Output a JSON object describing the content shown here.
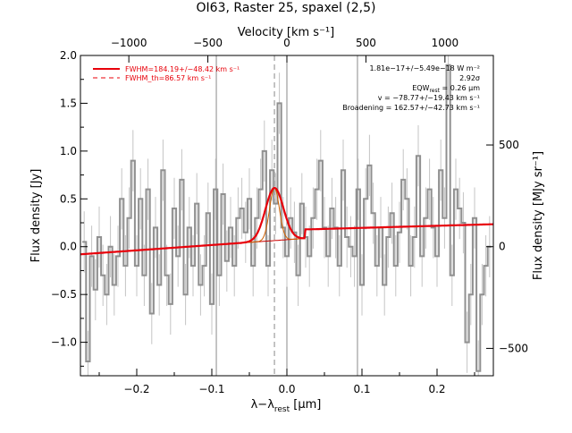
{
  "chart_data": {
    "type": "line",
    "title": "OI63, Raster 25, spaxel (2,5)",
    "xlabel_main": "λ−λ",
    "xlabel_sub": "rest",
    "xlabel_unit": " [μm]",
    "ylabel_left": "Flux density [Jy]",
    "ylabel_right": "Flux density [MJy sr⁻¹]",
    "top_axis_label": "Velocity [km s⁻¹]",
    "xlim": [
      -0.275,
      0.275
    ],
    "ylim": [
      -1.35,
      2.0
    ],
    "x_ticks": [
      -0.2,
      -0.1,
      0.0,
      0.1,
      0.2
    ],
    "x_tick_labels": [
      "−0.2",
      "−0.1",
      "0.0",
      "0.1",
      "0.2"
    ],
    "y_ticks": [
      -1.0,
      -0.5,
      0.0,
      0.5,
      1.0,
      1.5,
      2.0
    ],
    "y_tick_labels": [
      "−1.0",
      "−0.5",
      "0.0",
      "0.5",
      "1.0",
      "1.5",
      "2.0"
    ],
    "top_ticks_velocity": [
      -1000,
      -500,
      0,
      500,
      1000
    ],
    "top_tick_labels": [
      "−1000",
      "−500",
      "0",
      "500",
      "1000"
    ],
    "right_ticks_mjy": [
      -500,
      0,
      500
    ],
    "right_tick_labels": [
      "−500",
      "0",
      "500"
    ],
    "velocity_per_micron": 4750,
    "mjy_per_jy": 470,
    "vertical_lines": [
      -0.094,
      0.094
    ],
    "rest_line_x": 0.0,
    "fit_center_line_x": -0.0166,
    "legend": {
      "placement": "top-left",
      "fwhm": "FWHM=184.19+/−48.42 km s⁻¹",
      "fwhm_th": "FWHM_th=86.57 km s⁻¹"
    },
    "annotations": {
      "flux": "1.81e−17+/−5.49e−18 W m⁻²",
      "sigma": "2.92σ",
      "eqw": "EQW",
      "eqw_sub": "rest",
      "eqw_value": " = 0.26 μm",
      "velocity": "v = −78.77+/−19.43 km s⁻¹",
      "broadening": "Broadening = 162.57+/−42.73 km s⁻¹"
    },
    "series": [
      {
        "style": "step",
        "color": "#909090",
        "x": [
          -0.27,
          -0.265,
          -0.26,
          -0.255,
          -0.25,
          -0.245,
          -0.24,
          -0.235,
          -0.23,
          -0.225,
          -0.22,
          -0.215,
          -0.21,
          -0.205,
          -0.2,
          -0.195,
          -0.19,
          -0.185,
          -0.18,
          -0.175,
          -0.17,
          -0.165,
          -0.16,
          -0.155,
          -0.15,
          -0.145,
          -0.14,
          -0.135,
          -0.13,
          -0.125,
          -0.12,
          -0.115,
          -0.11,
          -0.105,
          -0.1,
          -0.095,
          -0.09,
          -0.085,
          -0.08,
          -0.075,
          -0.07,
          -0.065,
          -0.06,
          -0.055,
          -0.05,
          -0.045,
          -0.04,
          -0.035,
          -0.03,
          -0.025,
          -0.02,
          -0.015,
          -0.01,
          -0.005,
          0.0,
          0.005,
          0.01,
          0.015,
          0.02,
          0.025,
          0.03,
          0.035,
          0.04,
          0.045,
          0.05,
          0.055,
          0.06,
          0.065,
          0.07,
          0.075,
          0.08,
          0.085,
          0.09,
          0.095,
          0.1,
          0.105,
          0.11,
          0.115,
          0.12,
          0.125,
          0.13,
          0.135,
          0.14,
          0.145,
          0.15,
          0.155,
          0.16,
          0.165,
          0.17,
          0.175,
          0.18,
          0.185,
          0.19,
          0.195,
          0.2,
          0.205,
          0.21,
          0.215,
          0.22,
          0.225,
          0.23,
          0.235,
          0.24,
          0.245,
          0.25,
          0.255,
          0.26,
          0.265,
          0.27
        ],
        "y": [
          0.05,
          -1.2,
          -0.1,
          -0.45,
          0.1,
          -0.3,
          -0.5,
          0.0,
          -0.4,
          -0.1,
          0.5,
          -0.2,
          0.3,
          0.9,
          -0.2,
          0.5,
          -0.3,
          0.6,
          -0.7,
          0.2,
          -0.4,
          0.8,
          -0.3,
          -0.6,
          0.4,
          -0.1,
          0.7,
          -0.5,
          0.2,
          -0.2,
          0.45,
          -0.4,
          -0.2,
          0.35,
          -0.6,
          0.6,
          -0.3,
          0.55,
          -0.15,
          0.2,
          -0.2,
          0.3,
          0.4,
          0.15,
          0.5,
          -0.2,
          0.3,
          0.6,
          1.0,
          -0.2,
          0.8,
          0.45,
          1.5,
          0.2,
          -0.1,
          0.3,
          0.15,
          -0.3,
          0.45,
          0.1,
          -0.1,
          0.3,
          0.6,
          0.9,
          0.2,
          -0.1,
          0.4,
          0.2,
          -0.2,
          0.8,
          0.1,
          0.0,
          -0.1,
          0.6,
          -0.4,
          0.5,
          0.85,
          0.35,
          -0.2,
          0.2,
          -0.4,
          0.1,
          0.35,
          -0.2,
          0.15,
          0.7,
          0.5,
          -0.2,
          0.1,
          0.95,
          -0.1,
          0.3,
          0.6,
          0.2,
          -0.1,
          0.8,
          0.3,
          1.9,
          -0.3,
          0.6,
          0.4,
          0.25,
          -1.0,
          -0.5,
          0.3,
          -1.3,
          -0.5,
          -0.2,
          0.0
        ]
      },
      {
        "style": "smooth",
        "color": "#e8000a",
        "label": "FWHM=184.19+/−48.42 km s⁻¹",
        "baseline_left": -0.08,
        "baseline_right": 0.235,
        "baseline_step_x": 0.024,
        "baseline_step_level": 0.18,
        "gauss_amp": 0.55,
        "gauss_center": -0.0166,
        "gauss_sigma": 0.012
      },
      {
        "style": "thin",
        "color": "#d06000",
        "gauss_amp": 0.55,
        "gauss_center": -0.0166,
        "gauss_sigma": 0.0065
      }
    ],
    "grid": false
  }
}
